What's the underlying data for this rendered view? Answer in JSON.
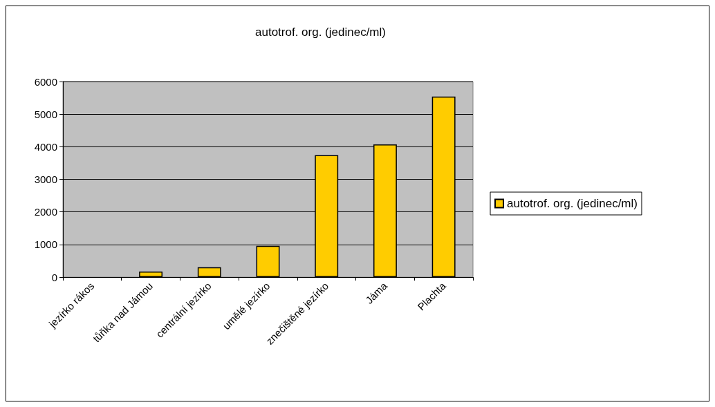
{
  "chart_data": {
    "type": "bar",
    "title": "autotrof. org. (jedinec/ml)",
    "categories": [
      "jezírko rákos",
      "tůňka nad Jámou",
      "centrální jezírko",
      "umělé jezírko",
      "znečištěné jezírko",
      "Jáma",
      "Plachta"
    ],
    "series": [
      {
        "name": "autotrof. org. (jedinec/ml)",
        "color": "#ffcc00",
        "values": [
          0,
          170,
          300,
          960,
          3740,
          4070,
          5540
        ]
      }
    ],
    "ylim": [
      0,
      6000
    ],
    "yticks": [
      0,
      1000,
      2000,
      3000,
      4000,
      5000,
      6000
    ],
    "grid": "y",
    "legend": "right"
  }
}
